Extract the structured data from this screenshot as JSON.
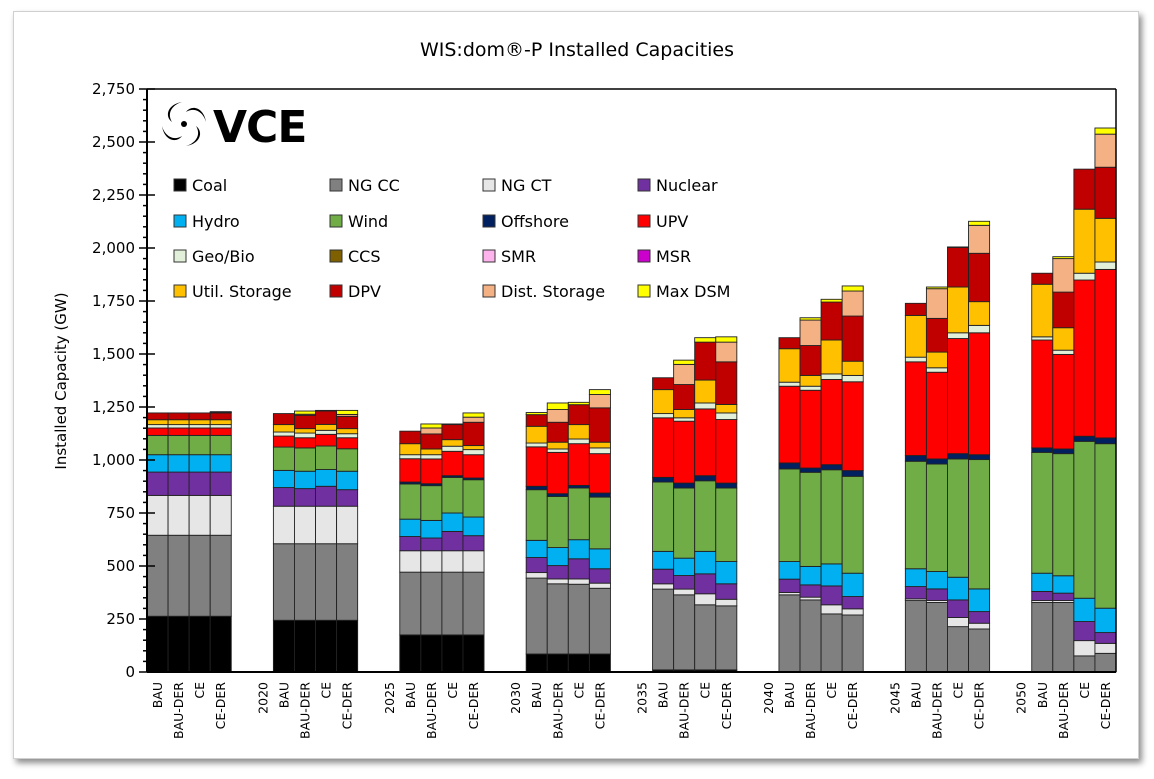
{
  "logo": {
    "text": "VCE"
  },
  "chart_data": {
    "type": "bar",
    "stacked": true,
    "title": "WIS:dom®-P Installed Capacities",
    "xlabel": "",
    "ylabel": "Installed Capacity (GW)",
    "ylim": [
      0,
      2750
    ],
    "yticks": [
      0,
      250,
      500,
      750,
      1000,
      1250,
      1500,
      1750,
      2000,
      2250,
      2500,
      2750
    ],
    "ytick_labels": [
      "0",
      "250",
      "500",
      "750",
      "1,000",
      "1,250",
      "1,500",
      "1,750",
      "2,000",
      "2,250",
      "2,500",
      "2,750"
    ],
    "grid": false,
    "legend_position": "top-left",
    "categories": [
      "BAU",
      "BAU-DER",
      "CE",
      "CE-DER",
      "",
      "2020",
      "BAU",
      "BAU-DER",
      "CE",
      "CE-DER",
      "",
      "2025",
      "BAU",
      "BAU-DER",
      "CE",
      "CE-DER",
      "",
      "2030",
      "BAU",
      "BAU-DER",
      "CE",
      "CE-DER",
      "",
      "2035",
      "BAU",
      "BAU-DER",
      "CE",
      "CE-DER",
      "",
      "2040",
      "BAU",
      "BAU-DER",
      "CE",
      "CE-DER",
      "",
      "2045",
      "BAU",
      "BAU-DER",
      "CE",
      "CE-DER",
      "",
      "2050",
      "BAU",
      "BAU-DER",
      "CE",
      "CE-DER"
    ],
    "series": [
      {
        "name": "Coal",
        "color": "#000000",
        "values": [
          263,
          263,
          263,
          263,
          null,
          null,
          244,
          244,
          244,
          244,
          null,
          null,
          175,
          175,
          175,
          175,
          null,
          null,
          85,
          85,
          85,
          85,
          null,
          null,
          10,
          10,
          10,
          10,
          null,
          null,
          0,
          0,
          0,
          0,
          null,
          null,
          0,
          0,
          0,
          0,
          null,
          null,
          0,
          0,
          0,
          0
        ]
      },
      {
        "name": "NG CC",
        "color": "#808080",
        "values": [
          382,
          382,
          382,
          382,
          null,
          null,
          361,
          361,
          361,
          361,
          null,
          null,
          296,
          296,
          296,
          296,
          null,
          null,
          358,
          331,
          329,
          310,
          null,
          null,
          381,
          354,
          307,
          302,
          null,
          null,
          364,
          340,
          274,
          269,
          null,
          null,
          337,
          328,
          214,
          203,
          null,
          null,
          328,
          328,
          76,
          88
        ]
      },
      {
        "name": "NG CT",
        "color": "#e6e6e6",
        "values": [
          188,
          188,
          188,
          188,
          null,
          null,
          177,
          177,
          177,
          177,
          null,
          null,
          101,
          101,
          101,
          101,
          null,
          null,
          26,
          23,
          25,
          24,
          null,
          null,
          25,
          27,
          52,
          31,
          null,
          null,
          11,
          13,
          43,
          29,
          null,
          null,
          8,
          9,
          43,
          27,
          null,
          null,
          9,
          9,
          72,
          47
        ]
      },
      {
        "name": "Nuclear",
        "color": "#7030a0",
        "values": [
          110,
          110,
          110,
          110,
          null,
          null,
          88,
          83,
          94,
          78,
          null,
          null,
          67,
          60,
          91,
          71,
          null,
          null,
          71,
          63,
          95,
          68,
          null,
          null,
          69,
          64,
          94,
          73,
          null,
          null,
          63,
          58,
          89,
          58,
          null,
          null,
          58,
          55,
          83,
          55,
          null,
          null,
          43,
          35,
          90,
          51
        ]
      },
      {
        "name": "Hydro",
        "color": "#00b0f0",
        "values": [
          82,
          82,
          82,
          82,
          null,
          null,
          81,
          82,
          79,
          87,
          null,
          null,
          82,
          83,
          87,
          88,
          null,
          null,
          81,
          85,
          90,
          94,
          null,
          null,
          84,
          82,
          106,
          105,
          null,
          null,
          83,
          87,
          104,
          110,
          null,
          null,
          84,
          82,
          107,
          107,
          null,
          null,
          86,
          82,
          110,
          115
        ]
      },
      {
        "name": "Wind",
        "color": "#70ad47",
        "values": [
          91,
          91,
          91,
          91,
          null,
          null,
          110,
          110,
          111,
          106,
          null,
          null,
          166,
          164,
          168,
          176,
          null,
          null,
          239,
          241,
          244,
          244,
          null,
          null,
          327,
          331,
          333,
          347,
          null,
          null,
          437,
          444,
          444,
          457,
          null,
          null,
          507,
          507,
          558,
          610,
          null,
          null,
          570,
          576,
          740,
          776
        ]
      },
      {
        "name": "Offshore",
        "color": "#002060",
        "values": [
          0,
          0,
          0,
          0,
          null,
          null,
          0,
          0,
          0,
          0,
          null,
          null,
          9,
          9,
          8,
          8,
          null,
          null,
          16,
          13,
          12,
          19,
          null,
          null,
          22,
          23,
          24,
          23,
          null,
          null,
          28,
          20,
          24,
          27,
          null,
          null,
          27,
          24,
          25,
          23,
          null,
          null,
          21,
          22,
          24,
          27
        ]
      },
      {
        "name": "UPV",
        "color": "#ff0000",
        "values": [
          35,
          35,
          35,
          35,
          null,
          null,
          52,
          48,
          55,
          52,
          null,
          null,
          110,
          117,
          115,
          110,
          null,
          null,
          186,
          195,
          197,
          186,
          null,
          null,
          281,
          292,
          315,
          300,
          null,
          null,
          362,
          367,
          402,
          419,
          null,
          null,
          442,
          409,
          543,
          575,
          null,
          null,
          509,
          446,
          737,
          795
        ]
      },
      {
        "name": "Geo/Bio",
        "color": "#e2f0d9",
        "values": [
          16,
          16,
          16,
          16,
          null,
          null,
          19,
          22,
          19,
          19,
          null,
          null,
          19,
          20,
          24,
          24,
          null,
          null,
          18,
          16,
          22,
          27,
          null,
          null,
          20,
          16,
          28,
          31,
          null,
          null,
          19,
          19,
          26,
          30,
          null,
          null,
          22,
          21,
          27,
          35,
          null,
          null,
          15,
          20,
          32,
          35
        ]
      },
      {
        "name": "CCS",
        "color": "#7f6000",
        "values": [
          0,
          0,
          0,
          0,
          null,
          null,
          0,
          0,
          0,
          0,
          null,
          null,
          0,
          0,
          0,
          0,
          null,
          null,
          0,
          0,
          0,
          0,
          null,
          null,
          0,
          0,
          0,
          0,
          null,
          null,
          0,
          0,
          0,
          0,
          null,
          null,
          0,
          0,
          0,
          0,
          null,
          null,
          0,
          0,
          0,
          0
        ]
      },
      {
        "name": "SMR",
        "color": "#ffb3ec",
        "values": [
          0,
          0,
          0,
          0,
          null,
          null,
          0,
          0,
          0,
          0,
          null,
          null,
          0,
          0,
          0,
          0,
          null,
          null,
          0,
          0,
          0,
          0,
          null,
          null,
          0,
          0,
          0,
          0,
          null,
          null,
          0,
          0,
          0,
          0,
          null,
          null,
          0,
          0,
          0,
          0,
          null,
          null,
          0,
          0,
          0,
          0
        ]
      },
      {
        "name": "MSR",
        "color": "#cc00cc",
        "values": [
          0,
          0,
          0,
          0,
          null,
          null,
          0,
          0,
          0,
          0,
          null,
          null,
          0,
          0,
          0,
          0,
          null,
          null,
          0,
          0,
          0,
          0,
          null,
          null,
          0,
          0,
          0,
          0,
          null,
          null,
          0,
          0,
          0,
          0,
          null,
          null,
          0,
          0,
          0,
          0,
          null,
          null,
          0,
          0,
          0,
          0
        ]
      },
      {
        "name": "Util. Storage",
        "color": "#ffc000",
        "values": [
          23,
          23,
          23,
          23,
          null,
          null,
          35,
          21,
          28,
          24,
          null,
          null,
          52,
          27,
          31,
          19,
          null,
          null,
          79,
          32,
          68,
          27,
          null,
          null,
          113,
          39,
          108,
          40,
          null,
          null,
          158,
          51,
          160,
          67,
          null,
          null,
          197,
          74,
          216,
          112,
          null,
          null,
          248,
          106,
          302,
          206
        ]
      },
      {
        "name": "DPV",
        "color": "#c00000",
        "values": [
          32,
          32,
          32,
          32,
          null,
          null,
          52,
          63,
          63,
          58,
          null,
          null,
          59,
          71,
          71,
          110,
          null,
          null,
          55,
          94,
          94,
          162,
          null,
          null,
          56,
          118,
          179,
          201,
          null,
          null,
          52,
          141,
          179,
          213,
          null,
          null,
          57,
          159,
          187,
          228,
          null,
          null,
          52,
          168,
          189,
          241
        ]
      },
      {
        "name": "Dist. Storage",
        "color": "#f4b183",
        "values": [
          0,
          0,
          0,
          3,
          null,
          null,
          0,
          5,
          0,
          9,
          null,
          null,
          0,
          28,
          0,
          24,
          null,
          null,
          0,
          60,
          0,
          63,
          null,
          null,
          0,
          95,
          0,
          93,
          null,
          null,
          0,
          120,
          0,
          118,
          null,
          null,
          0,
          140,
          0,
          132,
          null,
          null,
          0,
          158,
          0,
          156
        ]
      },
      {
        "name": "Max DSM",
        "color": "#ffff00",
        "values": [
          0,
          0,
          0,
          3,
          null,
          null,
          0,
          15,
          3,
          19,
          null,
          null,
          0,
          19,
          3,
          20,
          null,
          null,
          10,
          31,
          11,
          23,
          null,
          null,
          0,
          20,
          21,
          25,
          null,
          null,
          0,
          11,
          13,
          24,
          null,
          null,
          0,
          8,
          2,
          19,
          null,
          null,
          0,
          9,
          0,
          29
        ]
      }
    ]
  }
}
